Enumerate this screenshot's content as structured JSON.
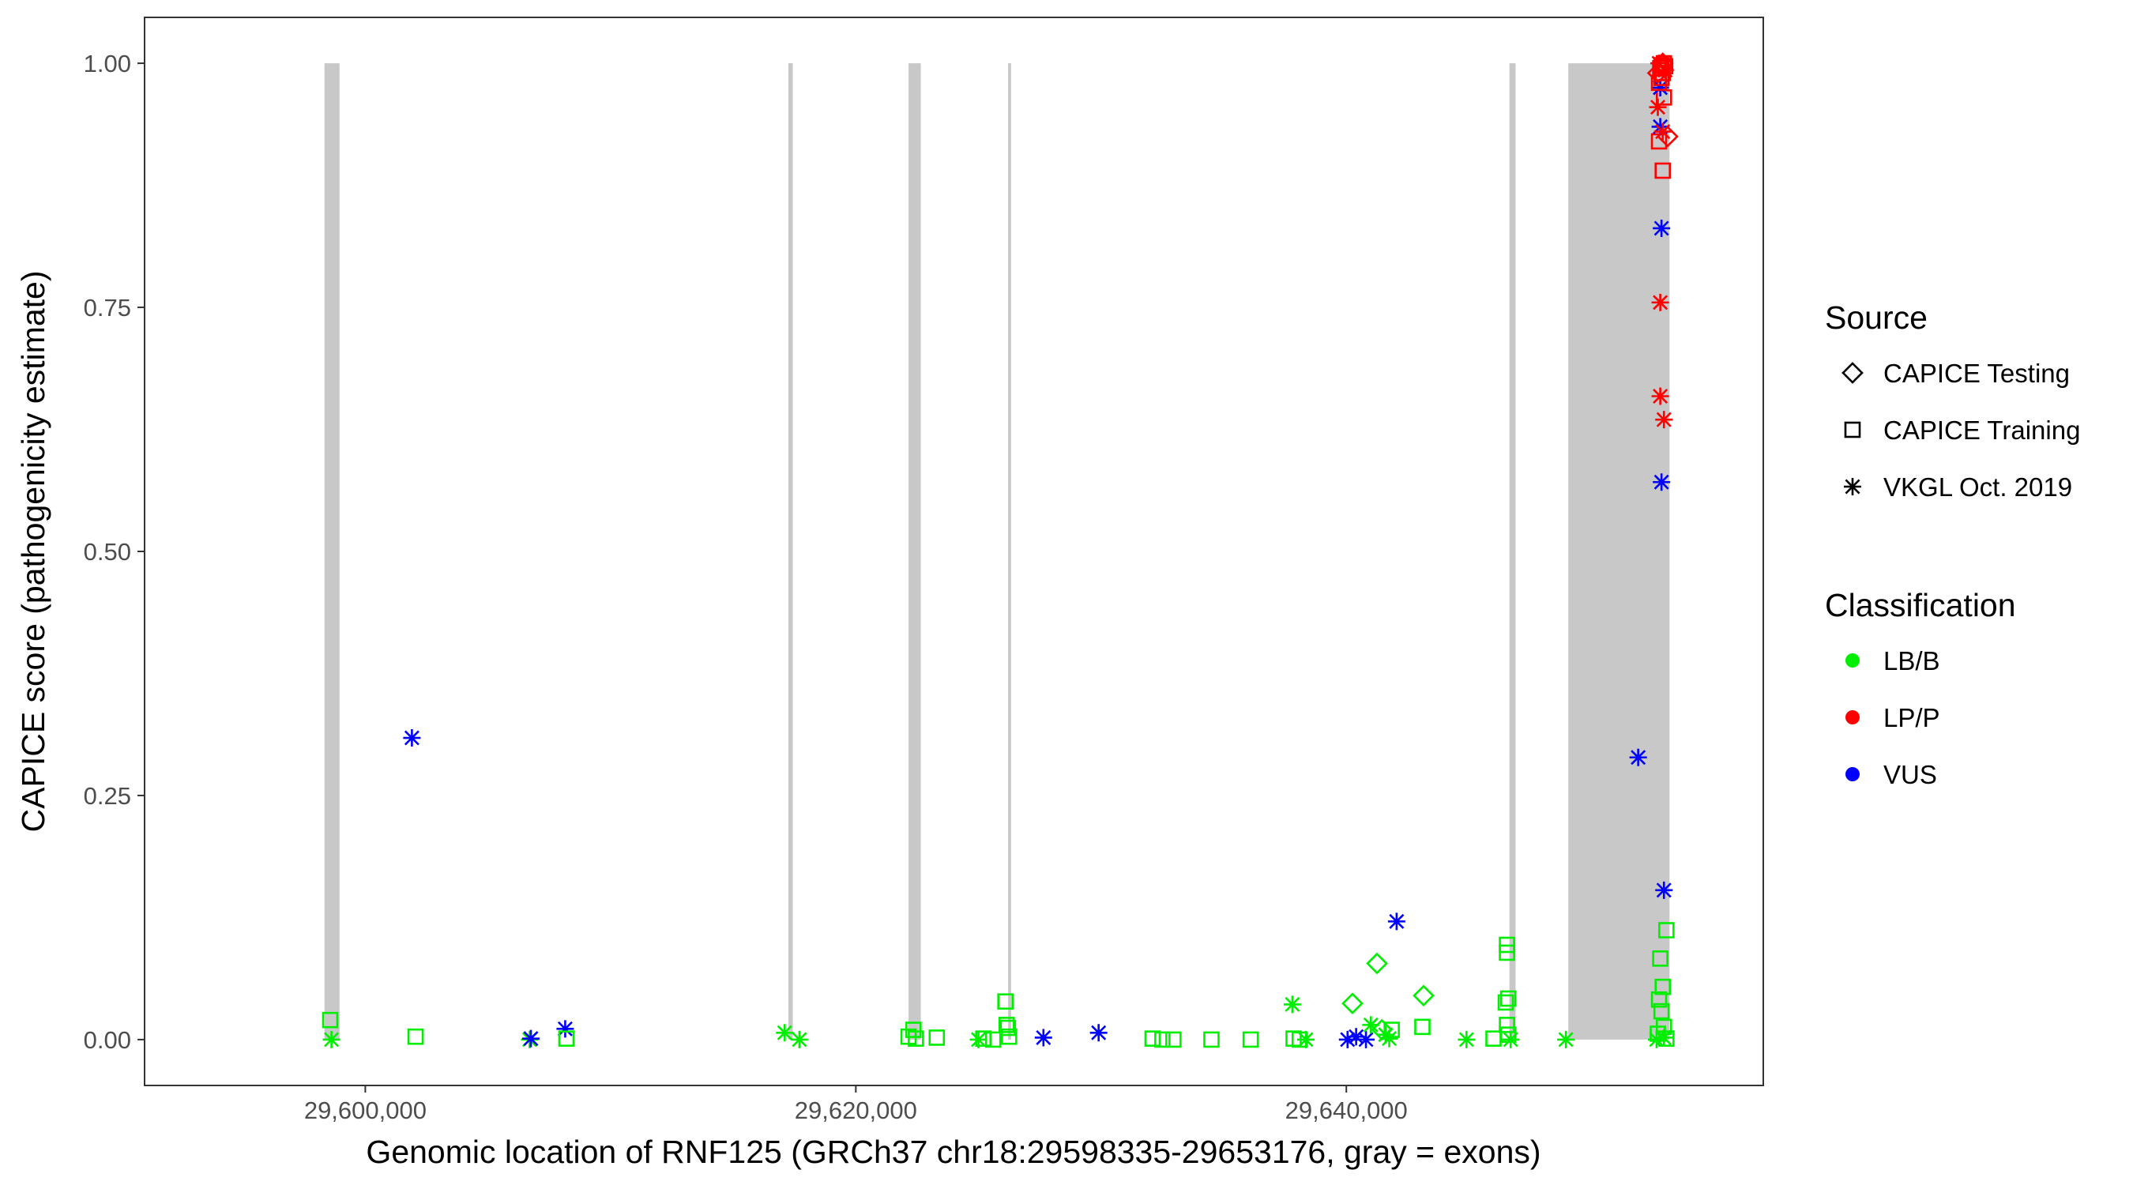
{
  "chart_data": {
    "type": "scatter",
    "xlabel": "Genomic location of RNF125 (GRCh37 chr18:29598335-29653176, gray = exons)",
    "ylabel": "CAPICE score (pathogenicity estimate)",
    "xlim": [
      29591000,
      29657000
    ],
    "ylim": [
      -0.047,
      1.047
    ],
    "x_ticks": [
      {
        "value": 29600000,
        "label": "29,600,000"
      },
      {
        "value": 29620000,
        "label": "29,620,000"
      },
      {
        "value": 29640000,
        "label": "29,640,000"
      }
    ],
    "y_ticks": [
      {
        "value": 0.0,
        "label": "0.00"
      },
      {
        "value": 0.25,
        "label": "0.25"
      },
      {
        "value": 0.5,
        "label": "0.50"
      },
      {
        "value": 0.75,
        "label": "0.75"
      },
      {
        "value": 1.0,
        "label": "1.00"
      }
    ],
    "grid": false,
    "exon_color": "#c8c8c8",
    "exons": [
      {
        "start": 29598335,
        "end": 29598950
      },
      {
        "start": 29617250,
        "end": 29617430
      },
      {
        "start": 29622150,
        "end": 29622650
      },
      {
        "start": 29626210,
        "end": 29626330
      },
      {
        "start": 29646650,
        "end": 29646900
      },
      {
        "start": 29649050,
        "end": 29653176
      }
    ],
    "legend": {
      "placement": "right",
      "shape_title": "Source",
      "shapes": [
        {
          "label": "CAPICE Testing",
          "shape": "diamond"
        },
        {
          "label": "CAPICE Training",
          "shape": "square"
        },
        {
          "label": "VKGL Oct. 2019",
          "shape": "asterisk"
        }
      ],
      "color_title": "Classification",
      "colors": [
        {
          "label": "LB/B",
          "color": "#00ee00"
        },
        {
          "label": "LP/P",
          "color": "#ff0000"
        },
        {
          "label": "VUS",
          "color": "#0000ff"
        }
      ]
    },
    "points": [
      {
        "x": 29598570,
        "y": 0.02,
        "source": "CAPICE Training",
        "class": "LB/B"
      },
      {
        "x": 29598620,
        "y": 0.0,
        "source": "VKGL Oct. 2019",
        "class": "LB/B"
      },
      {
        "x": 29602050,
        "y": 0.003,
        "source": "CAPICE Training",
        "class": "LB/B"
      },
      {
        "x": 29601900,
        "y": 0.309,
        "source": "VKGL Oct. 2019",
        "class": "VUS"
      },
      {
        "x": 29606700,
        "y": 0.0,
        "source": "VKGL Oct. 2019",
        "class": "LB/B"
      },
      {
        "x": 29606750,
        "y": 0.001,
        "source": "VKGL Oct. 2019",
        "class": "VUS"
      },
      {
        "x": 29608150,
        "y": 0.011,
        "source": "VKGL Oct. 2019",
        "class": "VUS"
      },
      {
        "x": 29608200,
        "y": 0.001,
        "source": "CAPICE Training",
        "class": "LB/B"
      },
      {
        "x": 29617100,
        "y": 0.007,
        "source": "VKGL Oct. 2019",
        "class": "LB/B"
      },
      {
        "x": 29617700,
        "y": 0.0,
        "source": "VKGL Oct. 2019",
        "class": "LB/B"
      },
      {
        "x": 29622150,
        "y": 0.003,
        "source": "CAPICE Training",
        "class": "LB/B"
      },
      {
        "x": 29622350,
        "y": 0.01,
        "source": "CAPICE Training",
        "class": "LB/B"
      },
      {
        "x": 29622450,
        "y": 0.001,
        "source": "CAPICE Training",
        "class": "LB/B"
      },
      {
        "x": 29623300,
        "y": 0.002,
        "source": "CAPICE Training",
        "class": "LB/B"
      },
      {
        "x": 29625000,
        "y": 0.0,
        "source": "VKGL Oct. 2019",
        "class": "LB/B"
      },
      {
        "x": 29625200,
        "y": 0.001,
        "source": "CAPICE Training",
        "class": "LB/B"
      },
      {
        "x": 29625600,
        "y": 0.0,
        "source": "CAPICE Training",
        "class": "LB/B"
      },
      {
        "x": 29626100,
        "y": 0.039,
        "source": "CAPICE Training",
        "class": "LB/B"
      },
      {
        "x": 29626150,
        "y": 0.015,
        "source": "CAPICE Training",
        "class": "LB/B"
      },
      {
        "x": 29626200,
        "y": 0.012,
        "source": "CAPICE Training",
        "class": "LB/B"
      },
      {
        "x": 29626250,
        "y": 0.003,
        "source": "CAPICE Training",
        "class": "LB/B"
      },
      {
        "x": 29627650,
        "y": 0.002,
        "source": "VKGL Oct. 2019",
        "class": "VUS"
      },
      {
        "x": 29629900,
        "y": 0.007,
        "source": "VKGL Oct. 2019",
        "class": "VUS"
      },
      {
        "x": 29632100,
        "y": 0.001,
        "source": "CAPICE Training",
        "class": "LB/B"
      },
      {
        "x": 29632500,
        "y": 0.0,
        "source": "CAPICE Training",
        "class": "LB/B"
      },
      {
        "x": 29632950,
        "y": 0.0,
        "source": "CAPICE Training",
        "class": "LB/B"
      },
      {
        "x": 29634500,
        "y": 0.0,
        "source": "CAPICE Training",
        "class": "LB/B"
      },
      {
        "x": 29636100,
        "y": 0.0,
        "source": "CAPICE Training",
        "class": "LB/B"
      },
      {
        "x": 29637800,
        "y": 0.036,
        "source": "VKGL Oct. 2019",
        "class": "LB/B"
      },
      {
        "x": 29637850,
        "y": 0.001,
        "source": "CAPICE Training",
        "class": "LB/B"
      },
      {
        "x": 29638100,
        "y": 0.0,
        "source": "CAPICE Training",
        "class": "LB/B"
      },
      {
        "x": 29638350,
        "y": 0.0,
        "source": "VKGL Oct. 2019",
        "class": "LB/B"
      },
      {
        "x": 29640050,
        "y": 0.0,
        "source": "VKGL Oct. 2019",
        "class": "VUS"
      },
      {
        "x": 29640250,
        "y": 0.037,
        "source": "CAPICE Testing",
        "class": "LB/B"
      },
      {
        "x": 29640400,
        "y": 0.003,
        "source": "VKGL Oct. 2019",
        "class": "VUS"
      },
      {
        "x": 29640800,
        "y": 0.0,
        "source": "VKGL Oct. 2019",
        "class": "VUS"
      },
      {
        "x": 29641000,
        "y": 0.015,
        "source": "VKGL Oct. 2019",
        "class": "LB/B"
      },
      {
        "x": 29641250,
        "y": 0.078,
        "source": "CAPICE Testing",
        "class": "LB/B"
      },
      {
        "x": 29641450,
        "y": 0.01,
        "source": "CAPICE Testing",
        "class": "LB/B"
      },
      {
        "x": 29641600,
        "y": 0.005,
        "source": "VKGL Oct. 2019",
        "class": "LB/B"
      },
      {
        "x": 29641750,
        "y": 0.001,
        "source": "VKGL Oct. 2019",
        "class": "LB/B"
      },
      {
        "x": 29641850,
        "y": 0.01,
        "source": "CAPICE Training",
        "class": "LB/B"
      },
      {
        "x": 29642050,
        "y": 0.121,
        "source": "VKGL Oct. 2019",
        "class": "VUS"
      },
      {
        "x": 29643150,
        "y": 0.045,
        "source": "CAPICE Testing",
        "class": "LB/B"
      },
      {
        "x": 29643100,
        "y": 0.013,
        "source": "CAPICE Training",
        "class": "LB/B"
      },
      {
        "x": 29644900,
        "y": 0.0,
        "source": "VKGL Oct. 2019",
        "class": "LB/B"
      },
      {
        "x": 29646000,
        "y": 0.001,
        "source": "CAPICE Training",
        "class": "LB/B"
      },
      {
        "x": 29646550,
        "y": 0.097,
        "source": "CAPICE Training",
        "class": "LB/B"
      },
      {
        "x": 29646550,
        "y": 0.089,
        "source": "CAPICE Training",
        "class": "LB/B"
      },
      {
        "x": 29646600,
        "y": 0.042,
        "source": "CAPICE Training",
        "class": "LB/B"
      },
      {
        "x": 29646500,
        "y": 0.038,
        "source": "CAPICE Training",
        "class": "LB/B"
      },
      {
        "x": 29646550,
        "y": 0.015,
        "source": "CAPICE Training",
        "class": "LB/B"
      },
      {
        "x": 29646600,
        "y": 0.005,
        "source": "CAPICE Training",
        "class": "LB/B"
      },
      {
        "x": 29646700,
        "y": 0.0,
        "source": "VKGL Oct. 2019",
        "class": "LB/B"
      },
      {
        "x": 29648950,
        "y": 0.0,
        "source": "VKGL Oct. 2019",
        "class": "LB/B"
      },
      {
        "x": 29651900,
        "y": 0.289,
        "source": "VKGL Oct. 2019",
        "class": "VUS"
      },
      {
        "x": 29652650,
        "y": 0.0,
        "source": "VKGL Oct. 2019",
        "class": "LB/B"
      },
      {
        "x": 29652700,
        "y": 0.006,
        "source": "CAPICE Training",
        "class": "LB/B"
      },
      {
        "x": 29652750,
        "y": 0.041,
        "source": "CAPICE Training",
        "class": "LB/B"
      },
      {
        "x": 29652850,
        "y": 0.029,
        "source": "CAPICE Training",
        "class": "LB/B"
      },
      {
        "x": 29652800,
        "y": 0.083,
        "source": "CAPICE Training",
        "class": "LB/B"
      },
      {
        "x": 29652900,
        "y": 0.054,
        "source": "CAPICE Training",
        "class": "LB/B"
      },
      {
        "x": 29653050,
        "y": 0.112,
        "source": "CAPICE Training",
        "class": "LB/B"
      },
      {
        "x": 29652950,
        "y": 0.013,
        "source": "CAPICE Training",
        "class": "LB/B"
      },
      {
        "x": 29653050,
        "y": 0.001,
        "source": "CAPICE Training",
        "class": "LB/B"
      },
      {
        "x": 29652950,
        "y": 0.002,
        "source": "VKGL Oct. 2019",
        "class": "LB/B"
      },
      {
        "x": 29652950,
        "y": 0.153,
        "source": "VKGL Oct. 2019",
        "class": "VUS"
      },
      {
        "x": 29652850,
        "y": 0.571,
        "source": "VKGL Oct. 2019",
        "class": "VUS"
      },
      {
        "x": 29652950,
        "y": 0.635,
        "source": "VKGL Oct. 2019",
        "class": "LP/P"
      },
      {
        "x": 29652800,
        "y": 0.659,
        "source": "VKGL Oct. 2019",
        "class": "LP/P"
      },
      {
        "x": 29652800,
        "y": 0.755,
        "source": "VKGL Oct. 2019",
        "class": "LP/P"
      },
      {
        "x": 29652850,
        "y": 0.831,
        "source": "VKGL Oct. 2019",
        "class": "VUS"
      },
      {
        "x": 29652900,
        "y": 0.89,
        "source": "CAPICE Training",
        "class": "LP/P"
      },
      {
        "x": 29652750,
        "y": 0.92,
        "source": "CAPICE Training",
        "class": "LP/P"
      },
      {
        "x": 29653100,
        "y": 0.925,
        "source": "CAPICE Testing",
        "class": "LP/P"
      },
      {
        "x": 29652800,
        "y": 0.935,
        "source": "VKGL Oct. 2019",
        "class": "VUS"
      },
      {
        "x": 29652900,
        "y": 0.93,
        "source": "VKGL Oct. 2019",
        "class": "LP/P"
      },
      {
        "x": 29652700,
        "y": 0.955,
        "source": "VKGL Oct. 2019",
        "class": "LP/P"
      },
      {
        "x": 29652950,
        "y": 0.965,
        "source": "CAPICE Training",
        "class": "LP/P"
      },
      {
        "x": 29652800,
        "y": 0.975,
        "source": "VKGL Oct. 2019",
        "class": "VUS"
      },
      {
        "x": 29652750,
        "y": 0.98,
        "source": "CAPICE Training",
        "class": "LP/P"
      },
      {
        "x": 29652850,
        "y": 0.985,
        "source": "CAPICE Training",
        "class": "LP/P"
      },
      {
        "x": 29652900,
        "y": 0.99,
        "source": "CAPICE Training",
        "class": "LP/P"
      },
      {
        "x": 29652800,
        "y": 0.995,
        "source": "CAPICE Training",
        "class": "LP/P"
      },
      {
        "x": 29652850,
        "y": 0.998,
        "source": "CAPICE Training",
        "class": "LP/P"
      },
      {
        "x": 29652950,
        "y": 1.0,
        "source": "CAPICE Training",
        "class": "LP/P"
      },
      {
        "x": 29653000,
        "y": 0.997,
        "source": "CAPICE Training",
        "class": "LP/P"
      },
      {
        "x": 29652750,
        "y": 1.0,
        "source": "VKGL Oct. 2019",
        "class": "LP/P"
      },
      {
        "x": 29653000,
        "y": 0.993,
        "source": "VKGL Oct. 2019",
        "class": "LP/P"
      },
      {
        "x": 29652700,
        "y": 0.99,
        "source": "CAPICE Testing",
        "class": "LP/P"
      },
      {
        "x": 29652900,
        "y": 1.0,
        "source": "CAPICE Testing",
        "class": "LP/P"
      }
    ]
  }
}
